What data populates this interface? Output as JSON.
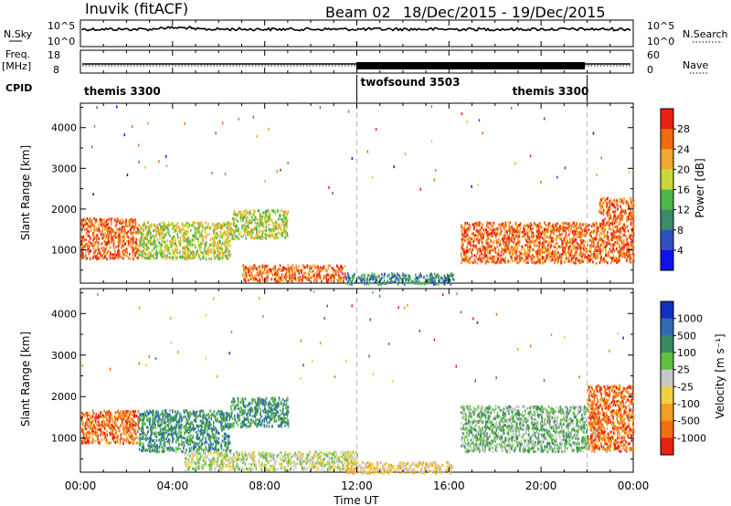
{
  "header": {
    "station": "Inuvik (fitACF)",
    "beam": "Beam 02",
    "dates": "18/Dec/2015 - 19/Dec/2015"
  },
  "top_panels": {
    "nsky_label": "N.Sky",
    "nsky_ticks": [
      "10^5",
      "10^0"
    ],
    "nsearch_label": "N.Search",
    "nsearch_ticks": [
      "10^5",
      "10^0"
    ],
    "freq_label_1": "Freq.",
    "freq_label_2": "[MHz]",
    "freq_ticks": [
      "18",
      "8"
    ],
    "nave_label": "Nave",
    "nave_ticks": [
      "60",
      "0"
    ],
    "cpid_label": "CPID",
    "cpid_segments": [
      {
        "name": "themis 3300",
        "start_hour": 0,
        "end_hour": 12
      },
      {
        "name": "twofsound 3503",
        "start_hour": 12,
        "end_hour": 22
      },
      {
        "name": "themis 3300",
        "start_hour": 22,
        "end_hour": 24
      }
    ]
  },
  "chart_data": [
    {
      "type": "heatmap",
      "quantity": "Power",
      "ylabel": "Slant Range [km]",
      "ylim": [
        180,
        4600
      ],
      "yticks": [
        1000,
        2000,
        3000,
        4000
      ],
      "xlim_hours": [
        0,
        24
      ],
      "colorbar_label": "Power [dB]",
      "colorbar_ticks": [
        "4",
        "8",
        "12",
        "16",
        "20",
        "24",
        "28"
      ],
      "colorbar_colors": [
        "#1010f0",
        "#3050c0",
        "#3c8c6a",
        "#4cb84c",
        "#c8d838",
        "#f0a830",
        "#f06a10",
        "#e82010"
      ],
      "scatter_regions": [
        {
          "start_hour": 0.0,
          "end_hour": 2.5,
          "range_min": 800,
          "range_max": 1800,
          "level": 6
        },
        {
          "start_hour": 2.5,
          "end_hour": 6.5,
          "range_min": 800,
          "range_max": 1700,
          "level": 4
        },
        {
          "start_hour": 6.5,
          "end_hour": 9.0,
          "range_min": 1300,
          "range_max": 2000,
          "level": 4
        },
        {
          "start_hour": 7.0,
          "end_hour": 11.5,
          "range_min": 250,
          "range_max": 650,
          "level": 6
        },
        {
          "start_hour": 11.5,
          "end_hour": 16.2,
          "range_min": 180,
          "range_max": 450,
          "level": 2
        },
        {
          "start_hour": 16.5,
          "end_hour": 22.5,
          "range_min": 700,
          "range_max": 1700,
          "level": 6
        },
        {
          "start_hour": 22.5,
          "end_hour": 24.0,
          "range_min": 700,
          "range_max": 2300,
          "level": 6
        }
      ]
    },
    {
      "type": "heatmap",
      "quantity": "Velocity",
      "ylabel": "Slant Range [km]",
      "xlabel": "Time UT",
      "ylim": [
        180,
        4600
      ],
      "yticks": [
        1000,
        2000,
        3000,
        4000
      ],
      "xlim_hours": [
        0,
        24
      ],
      "xticks": [
        "00:00",
        "04:00",
        "08:00",
        "12:00",
        "16:00",
        "20:00",
        "00:00"
      ],
      "colorbar_label": "Velocity [m s⁻¹]",
      "colorbar_ticks": [
        "1000",
        "500",
        "100",
        "25",
        "-25",
        "-100",
        "-500",
        "-1000"
      ],
      "colorbar_colors": [
        "#1030c0",
        "#2f6bb0",
        "#3a8a60",
        "#62c040",
        "#c8c8c8",
        "#f0d040",
        "#f0a020",
        "#f07010",
        "#e82010"
      ],
      "scatter_regions": [
        {
          "start_hour": 0.0,
          "end_hour": 2.5,
          "range_min": 900,
          "range_max": 1700,
          "level": 7
        },
        {
          "start_hour": 2.5,
          "end_hour": 6.5,
          "range_min": 700,
          "range_max": 1700,
          "level": 2
        },
        {
          "start_hour": 6.5,
          "end_hour": 9.0,
          "range_min": 1300,
          "range_max": 2000,
          "level": 2
        },
        {
          "start_hour": 4.5,
          "end_hour": 12.0,
          "range_min": 250,
          "range_max": 700,
          "level": 4
        },
        {
          "start_hour": 11.5,
          "end_hour": 16.2,
          "range_min": 180,
          "range_max": 450,
          "level": 5
        },
        {
          "start_hour": 16.5,
          "end_hour": 22.0,
          "range_min": 700,
          "range_max": 1800,
          "level": 3
        },
        {
          "start_hour": 22.0,
          "end_hour": 24.0,
          "range_min": 700,
          "range_max": 2300,
          "level": 7
        }
      ]
    }
  ]
}
